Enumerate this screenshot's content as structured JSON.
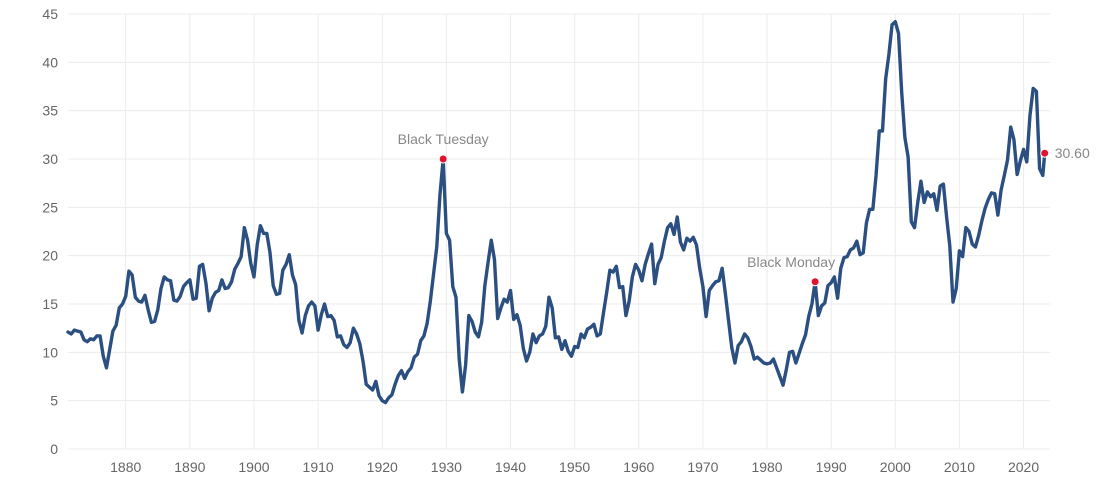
{
  "chart_data": {
    "type": "line",
    "title": "",
    "xlabel": "",
    "ylabel": "",
    "xlim": [
      1871,
      2023.5
    ],
    "ylim": [
      0,
      45
    ],
    "grid": true,
    "legend": "none",
    "x_ticks": [
      1880,
      1890,
      1900,
      1910,
      1920,
      1930,
      1940,
      1950,
      1960,
      1970,
      1980,
      1990,
      2000,
      2010,
      2020
    ],
    "y_ticks": [
      0,
      5,
      10,
      15,
      20,
      25,
      30,
      35,
      40,
      45
    ],
    "colors": {
      "line": "#2b4f81",
      "marker": "#e0122f",
      "grid": "#ececec",
      "tick_text": "#666666",
      "annotation_text": "#888888"
    },
    "series": [
      {
        "x": [
          1871,
          1871.5,
          1872,
          1872.5,
          1873,
          1873.5,
          1874,
          1874.5,
          1875,
          1875.5,
          1876,
          1876.5,
          1877,
          1877.5,
          1878,
          1878.5,
          1879,
          1879.5,
          1880,
          1880.5,
          1881,
          1881.5,
          1882,
          1882.5,
          1883,
          1883.5,
          1884,
          1884.5,
          1885,
          1885.5,
          1886,
          1886.5,
          1887,
          1887.5,
          1888,
          1888.5,
          1889,
          1889.5,
          1890,
          1890.5,
          1891,
          1891.5,
          1892,
          1892.5,
          1893,
          1893.5,
          1894,
          1894.5,
          1895,
          1895.5,
          1896,
          1896.5,
          1897,
          1897.5,
          1898,
          1898.5,
          1899,
          1899.5,
          1900,
          1900.5,
          1901,
          1901.5,
          1902,
          1902.5,
          1903,
          1903.5,
          1904,
          1904.5,
          1905,
          1905.5,
          1906,
          1906.5,
          1907,
          1907.5,
          1908,
          1908.5,
          1909,
          1909.5,
          1910,
          1910.5,
          1911,
          1911.5,
          1912,
          1912.5,
          1913,
          1913.5,
          1914,
          1914.5,
          1915,
          1915.5,
          1916,
          1916.5,
          1917,
          1917.5,
          1918,
          1918.5,
          1919,
          1919.5,
          1920,
          1920.5,
          1921,
          1921.5,
          1922,
          1922.5,
          1923,
          1923.5,
          1924,
          1924.5,
          1925,
          1925.5,
          1926,
          1926.5,
          1927,
          1927.5,
          1928,
          1928.5,
          1929,
          1929.5,
          1930,
          1930.5,
          1931,
          1931.5,
          1932,
          1932.5,
          1933,
          1933.5,
          1934,
          1934.5,
          1935,
          1935.5,
          1936,
          1936.5,
          1937,
          1937.5,
          1938,
          1938.5,
          1939,
          1939.5,
          1940,
          1940.5,
          1941,
          1941.5,
          1942,
          1942.5,
          1943,
          1943.5,
          1944,
          1944.5,
          1945,
          1945.5,
          1946,
          1946.5,
          1947,
          1947.5,
          1948,
          1948.5,
          1949,
          1949.5,
          1950,
          1950.5,
          1951,
          1951.5,
          1952,
          1952.5,
          1953,
          1953.5,
          1954,
          1954.5,
          1955,
          1955.5,
          1956,
          1956.5,
          1957,
          1957.5,
          1958,
          1958.5,
          1959,
          1959.5,
          1960,
          1960.5,
          1961,
          1961.5,
          1962,
          1962.5,
          1963,
          1963.5,
          1964,
          1964.5,
          1965,
          1965.5,
          1966,
          1966.5,
          1967,
          1967.5,
          1968,
          1968.5,
          1969,
          1969.5,
          1970,
          1970.5,
          1971,
          1971.5,
          1972,
          1972.5,
          1973,
          1973.5,
          1974,
          1974.5,
          1975,
          1975.5,
          1976,
          1976.5,
          1977,
          1977.5,
          1978,
          1978.5,
          1979,
          1979.5,
          1980,
          1980.5,
          1981,
          1981.5,
          1982,
          1982.5,
          1983,
          1983.5,
          1984,
          1984.5,
          1985,
          1985.5,
          1986,
          1986.5,
          1987,
          1987.5,
          1988,
          1988.5,
          1989,
          1989.5,
          1990,
          1990.5,
          1991,
          1991.5,
          1992,
          1992.5,
          1993,
          1993.5,
          1994,
          1994.5,
          1995,
          1995.5,
          1996,
          1996.5,
          1997,
          1997.5,
          1998,
          1998.5,
          1999,
          1999.5,
          2000,
          2000.5,
          2001,
          2001.5,
          2002,
          2002.5,
          2003,
          2003.5,
          2004,
          2004.5,
          2005,
          2005.5,
          2006,
          2006.5,
          2007,
          2007.5,
          2008,
          2008.5,
          2009,
          2009.5,
          2010,
          2010.5,
          2011,
          2011.5,
          2012,
          2012.5,
          2013,
          2013.5,
          2014,
          2014.5,
          2015,
          2015.5,
          2016,
          2016.5,
          2017,
          2017.5,
          2018,
          2018.5,
          2019,
          2019.5,
          2020,
          2020.5,
          2021,
          2021.5,
          2022,
          2022.5,
          2023,
          2023.3
        ],
        "values": [
          12.1,
          11.9,
          12.3,
          12.2,
          12.1,
          11.3,
          11.1,
          11.4,
          11.3,
          11.7,
          11.7,
          9.6,
          8.4,
          10.3,
          12.2,
          12.8,
          14.6,
          15.0,
          15.8,
          18.4,
          18.0,
          15.7,
          15.3,
          15.2,
          15.9,
          14.4,
          13.1,
          13.2,
          14.4,
          16.6,
          17.8,
          17.5,
          17.4,
          15.4,
          15.3,
          15.8,
          16.8,
          17.2,
          17.5,
          15.5,
          15.6,
          18.9,
          19.1,
          17.2,
          14.3,
          15.6,
          16.2,
          16.4,
          17.5,
          16.6,
          16.7,
          17.3,
          18.6,
          19.2,
          19.9,
          22.9,
          21.6,
          19.2,
          17.8,
          21.1,
          23.1,
          22.3,
          22.3,
          20.3,
          16.9,
          16.0,
          16.1,
          18.5,
          19.1,
          20.1,
          18.0,
          17.0,
          13.3,
          12.0,
          13.8,
          14.8,
          15.2,
          14.8,
          12.3,
          13.9,
          15.0,
          13.7,
          13.8,
          13.3,
          11.6,
          11.7,
          10.8,
          10.5,
          11.0,
          12.5,
          11.9,
          10.9,
          9.1,
          6.7,
          6.4,
          6.1,
          7.0,
          5.5,
          5.0,
          4.8,
          5.3,
          5.6,
          6.7,
          7.6,
          8.1,
          7.3,
          8.0,
          8.4,
          9.5,
          9.8,
          11.2,
          11.7,
          13.0,
          15.3,
          18.1,
          20.9,
          26.3,
          30.0,
          22.3,
          21.6,
          16.8,
          15.7,
          9.3,
          5.9,
          8.7,
          13.8,
          13.2,
          12.1,
          11.6,
          13.1,
          16.9,
          19.3,
          21.6,
          19.6,
          13.5,
          14.6,
          15.5,
          15.2,
          16.4,
          13.4,
          13.9,
          12.8,
          10.4,
          9.1,
          10.0,
          11.9,
          11.0,
          11.7,
          11.9,
          12.7,
          15.7,
          14.6,
          11.5,
          11.6,
          10.3,
          11.2,
          10.1,
          9.6,
          10.6,
          10.5,
          11.9,
          11.5,
          12.4,
          12.6,
          12.9,
          11.7,
          11.9,
          14.1,
          16.2,
          18.5,
          18.3,
          18.9,
          16.7,
          16.8,
          13.8,
          15.3,
          17.8,
          19.1,
          18.5,
          17.4,
          19.1,
          20.2,
          21.2,
          17.1,
          19.1,
          19.8,
          21.5,
          22.9,
          23.3,
          22.2,
          24.0,
          21.4,
          20.6,
          21.8,
          21.5,
          21.9,
          21.1,
          18.7,
          16.8,
          13.7,
          16.4,
          16.9,
          17.3,
          17.4,
          18.7,
          16.1,
          13.3,
          10.5,
          8.9,
          10.7,
          11.1,
          11.9,
          11.5,
          10.6,
          9.3,
          9.5,
          9.2,
          8.9,
          8.8,
          8.9,
          9.3,
          8.4,
          7.5,
          6.6,
          8.2,
          10.0,
          10.1,
          8.9,
          9.9,
          10.9,
          11.8,
          13.7,
          15.0,
          17.3,
          13.8,
          14.8,
          15.1,
          16.9,
          17.2,
          17.8,
          15.6,
          18.7,
          19.8,
          19.9,
          20.6,
          20.8,
          21.5,
          20.1,
          20.3,
          23.4,
          24.8,
          24.8,
          28.3,
          32.9,
          32.9,
          38.3,
          40.8,
          43.9,
          44.2,
          43.0,
          36.9,
          32.2,
          30.2,
          23.5,
          22.9,
          25.5,
          27.7,
          25.5,
          26.6,
          26.1,
          26.4,
          24.7,
          27.2,
          27.4,
          24.0,
          21.0,
          15.2,
          16.6,
          20.5,
          19.9,
          22.9,
          22.5,
          21.2,
          20.9,
          22.1,
          23.6,
          24.9,
          25.8,
          26.5,
          26.4,
          24.2,
          26.8,
          28.3,
          29.9,
          33.3,
          32.0,
          28.4,
          29.8,
          31.0,
          29.7,
          34.5,
          37.3,
          37.0,
          29.0,
          28.3,
          30.6
        ]
      }
    ],
    "annotations": [
      {
        "label": "Black Tuesday",
        "x": 1929.5,
        "y": 30.0
      },
      {
        "label": "Black Monday",
        "x": 1987.5,
        "y": 17.3
      },
      {
        "label": "30.60",
        "x": 2023.3,
        "y": 30.6
      }
    ]
  }
}
